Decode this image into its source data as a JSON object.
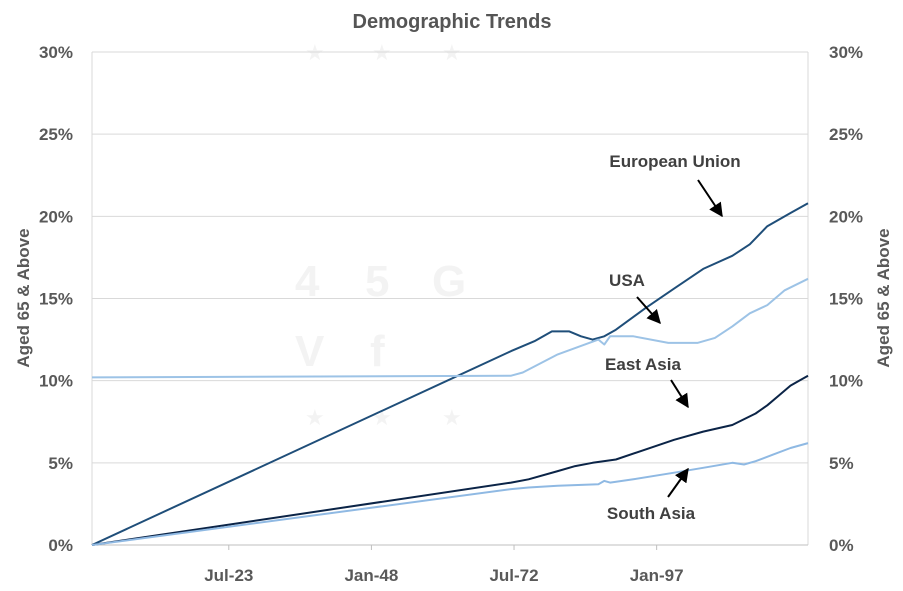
{
  "chart_data": {
    "type": "line",
    "title": "Demographic Trends",
    "ylabel_left": "Aged  65  &  Above",
    "ylabel_right": "Aged  65  &  Above",
    "xlabel": "",
    "x_ticks": [
      "Jul-23",
      "Jan-48",
      "Jul-72",
      "Jan-97"
    ],
    "x_range": [
      "1900",
      "2023"
    ],
    "ylim": [
      0,
      30
    ],
    "y_ticks": [
      "0%",
      "5%",
      "10%",
      "15%",
      "20%",
      "25%",
      "30%"
    ],
    "grid": "horizontal",
    "legend": "none",
    "series": [
      {
        "name": "European Union",
        "color": "#1f4e79",
        "points": [
          [
            1900,
            0
          ],
          [
            1972,
            11.8
          ],
          [
            1976,
            12.4
          ],
          [
            1979,
            13.0
          ],
          [
            1982,
            13.0
          ],
          [
            1984,
            12.7
          ],
          [
            1986,
            12.5
          ],
          [
            1988,
            12.7
          ],
          [
            1990,
            13.1
          ],
          [
            1995,
            14.4
          ],
          [
            2000,
            15.6
          ],
          [
            2005,
            16.8
          ],
          [
            2010,
            17.6
          ],
          [
            2013,
            18.3
          ],
          [
            2016,
            19.4
          ],
          [
            2020,
            20.2
          ],
          [
            2023,
            20.8
          ]
        ]
      },
      {
        "name": "USA",
        "color": "#9dc3e6",
        "points": [
          [
            1900,
            10.2
          ],
          [
            1972,
            10.3
          ],
          [
            1974,
            10.5
          ],
          [
            1980,
            11.6
          ],
          [
            1987,
            12.5
          ],
          [
            1988,
            12.2
          ],
          [
            1989,
            12.7
          ],
          [
            1993,
            12.7
          ],
          [
            1999,
            12.3
          ],
          [
            2004,
            12.3
          ],
          [
            2007,
            12.6
          ],
          [
            2010,
            13.3
          ],
          [
            2013,
            14.1
          ],
          [
            2016,
            14.6
          ],
          [
            2019,
            15.5
          ],
          [
            2023,
            16.2
          ]
        ]
      },
      {
        "name": "East Asia",
        "color": "#0b2447",
        "points": [
          [
            1900,
            0
          ],
          [
            1972,
            3.8
          ],
          [
            1975,
            4.0
          ],
          [
            1980,
            4.5
          ],
          [
            1983,
            4.8
          ],
          [
            1986,
            5.0
          ],
          [
            1990,
            5.2
          ],
          [
            1995,
            5.8
          ],
          [
            2000,
            6.4
          ],
          [
            2005,
            6.9
          ],
          [
            2010,
            7.3
          ],
          [
            2014,
            8.0
          ],
          [
            2016,
            8.5
          ],
          [
            2018,
            9.1
          ],
          [
            2020,
            9.7
          ],
          [
            2023,
            10.3
          ]
        ]
      },
      {
        "name": "South Asia",
        "color": "#8fb9e3",
        "points": [
          [
            1900,
            0
          ],
          [
            1972,
            3.4
          ],
          [
            1975,
            3.5
          ],
          [
            1980,
            3.6
          ],
          [
            1987,
            3.7
          ],
          [
            1988,
            3.9
          ],
          [
            1989,
            3.8
          ],
          [
            1993,
            4.0
          ],
          [
            2000,
            4.4
          ],
          [
            2005,
            4.7
          ],
          [
            2010,
            5.0
          ],
          [
            2012,
            4.9
          ],
          [
            2014,
            5.1
          ],
          [
            2017,
            5.5
          ],
          [
            2020,
            5.9
          ],
          [
            2023,
            6.2
          ]
        ]
      }
    ],
    "annotations": [
      {
        "text": "European Union",
        "series": "European Union"
      },
      {
        "text": "USA",
        "series": "USA"
      },
      {
        "text": "East Asia",
        "series": "East Asia"
      },
      {
        "text": "South Asia",
        "series": "South Asia"
      }
    ]
  },
  "watermark": [
    "4",
    "5",
    "G",
    "V",
    "f"
  ]
}
